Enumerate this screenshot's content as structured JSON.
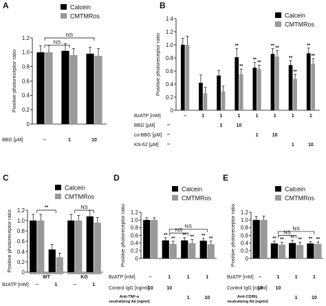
{
  "colors": {
    "calcein": "#000000",
    "cmtmros": "#999999"
  },
  "legend": {
    "calcein": "Calcein",
    "cmtmros": "CMTMRos"
  },
  "chart_data": [
    {
      "panel": "A",
      "type": "bar",
      "ylabel": "Positive photoreceptor ratio",
      "ylim": [
        0,
        1.2
      ],
      "yticks": [
        0,
        0.2,
        0.4,
        0.6,
        0.8,
        1.0,
        1.2
      ],
      "categories": [
        "1",
        "2",
        "3"
      ],
      "series": [
        {
          "name": "Calcein",
          "values": [
            1.0,
            1.02,
            0.98
          ],
          "errors": [
            0.09,
            0.1,
            0.09
          ]
        },
        {
          "name": "CMTMRos",
          "values": [
            1.0,
            0.96,
            0.95
          ],
          "errors": [
            0.1,
            0.09,
            0.1
          ]
        }
      ],
      "conditions": [
        {
          "label": "BBG [μM]",
          "values": [
            "–",
            "1",
            "10"
          ]
        }
      ],
      "brackets": [
        {
          "from": 0,
          "to": 1,
          "y": 1.1,
          "label": "NS"
        },
        {
          "from": 0,
          "to": 2,
          "y": 1.2,
          "label": "NS"
        }
      ]
    },
    {
      "panel": "B",
      "type": "bar",
      "ylabel": "Positive photoreceptor ratio",
      "ylim": [
        0,
        1.4
      ],
      "yticks": [
        0,
        0.2,
        0.4,
        0.6,
        0.8,
        1.0,
        1.2,
        1.4
      ],
      "categories": [
        "1",
        "2",
        "3",
        "4",
        "5",
        "6",
        "7",
        "8"
      ],
      "series": [
        {
          "name": "Calcein",
          "values": [
            1.0,
            0.42,
            0.53,
            0.81,
            0.65,
            0.86,
            0.69,
            0.87
          ],
          "errors": [
            0.1,
            0.12,
            0.08,
            0.13,
            0.08,
            0.08,
            0.07,
            0.08
          ],
          "marks": [
            "",
            "",
            "",
            "**",
            "**",
            "**",
            "**",
            "**"
          ]
        },
        {
          "name": "CMTMRos",
          "values": [
            1.0,
            0.26,
            0.29,
            0.55,
            0.63,
            0.82,
            0.48,
            0.71
          ],
          "errors": [
            0.13,
            0.09,
            0.08,
            0.08,
            0.06,
            0.09,
            0.07,
            0.08
          ],
          "marks": [
            "",
            "",
            "",
            "**",
            "**",
            "**",
            "**",
            "**"
          ]
        }
      ],
      "conditions": [
        {
          "label": "BzATP [mM]",
          "values": [
            "–",
            "1",
            "1",
            "1",
            "1",
            "1",
            "1",
            "1"
          ]
        },
        {
          "label": "BBG [μM]",
          "values": [
            "",
            "",
            "1",
            "10",
            "",
            "",
            "",
            ""
          ]
        },
        {
          "label": "co-BBG [μM]",
          "values": [
            "",
            "",
            "",
            "",
            "1",
            "10",
            "",
            ""
          ]
        },
        {
          "label": "KN-62 [μM]",
          "values": [
            "",
            "",
            "",
            "",
            "",
            "",
            "1",
            "10"
          ]
        }
      ],
      "brackets": []
    },
    {
      "panel": "C",
      "type": "bar",
      "ylabel": "Positive photoreceptor ratio",
      "ylim": [
        0,
        1.2
      ],
      "yticks": [
        0,
        0.2,
        0.4,
        0.6,
        0.8,
        1.0,
        1.2
      ],
      "categories": [
        "1",
        "2",
        "3",
        "4"
      ],
      "series": [
        {
          "name": "Calcein",
          "values": [
            1.0,
            0.44,
            1.0,
            1.08
          ],
          "errors": [
            0.12,
            0.1,
            0.12,
            0.12
          ]
        },
        {
          "name": "CMTMRos",
          "values": [
            1.0,
            0.29,
            1.0,
            0.96
          ],
          "errors": [
            0.12,
            0.08,
            0.1,
            0.1
          ]
        }
      ],
      "conditions": [
        {
          "label": "BzATP [mM]",
          "values": [
            "–",
            "1",
            "–",
            "1"
          ]
        }
      ],
      "groups": [
        {
          "label": "WT",
          "from": 0,
          "to": 1
        },
        {
          "label": "KO",
          "from": 2,
          "to": 3
        }
      ],
      "brackets": [
        {
          "from": 0,
          "to": 1,
          "y": 1.2,
          "label": "**"
        },
        {
          "from": 2,
          "to": 3,
          "y": 1.2,
          "label": "NS"
        }
      ]
    },
    {
      "panel": "D",
      "type": "bar",
      "ylabel": "Positive photoreceptor ratio",
      "ylim": [
        0,
        1.2
      ],
      "yticks": [
        0,
        0.2,
        0.4,
        0.6,
        0.8,
        1.0,
        1.2
      ],
      "categories": [
        "1",
        "2",
        "3",
        "4"
      ],
      "series": [
        {
          "name": "Calcein",
          "values": [
            1.0,
            0.47,
            0.47,
            0.46
          ],
          "errors": [
            0.06,
            0.07,
            0.07,
            0.06
          ],
          "marks": [
            "",
            "**",
            "**",
            "**"
          ]
        },
        {
          "name": "CMTMRos",
          "values": [
            1.0,
            0.38,
            0.4,
            0.37
          ],
          "errors": [
            0.06,
            0.07,
            0.09,
            0.08
          ],
          "marks": [
            "",
            "**",
            "**",
            "**"
          ]
        }
      ],
      "conditions": [
        {
          "label": "BzATP [mM]",
          "values": [
            "–",
            "1",
            "1",
            "1"
          ]
        },
        {
          "label": "Control IgG [ng/ml]",
          "values": [
            "10",
            "10",
            "",
            ""
          ]
        },
        {
          "label": "Anti-TNF-α neutralizing Ab [ng/ml]",
          "values": [
            "",
            "",
            "1",
            "10"
          ]
        }
      ],
      "brackets": [
        {
          "from": 1,
          "to": 2,
          "y": 0.66,
          "label": "NS"
        },
        {
          "from": 1,
          "to": 3,
          "y": 0.76,
          "label": "NS"
        }
      ]
    },
    {
      "panel": "E",
      "type": "bar",
      "ylabel": "Positive photoreceptor ratio",
      "ylim": [
        0,
        1.2
      ],
      "yticks": [
        0,
        0.2,
        0.4,
        0.6,
        0.8,
        1.0,
        1.2
      ],
      "categories": [
        "1",
        "2",
        "3",
        "4"
      ],
      "series": [
        {
          "name": "Calcein",
          "values": [
            1.0,
            0.39,
            0.4,
            0.39
          ],
          "errors": [
            0.09,
            0.06,
            0.07,
            0.05
          ],
          "marks": [
            "",
            "**",
            "**",
            "**"
          ]
        },
        {
          "name": "CMTMRos",
          "values": [
            1.0,
            0.36,
            0.35,
            0.38
          ],
          "errors": [
            0.1,
            0.06,
            0.07,
            0.05
          ],
          "marks": [
            "",
            "**",
            "**",
            "**"
          ]
        }
      ],
      "conditions": [
        {
          "label": "BzATP [mM]",
          "values": [
            "–",
            "1",
            "1",
            "1"
          ]
        },
        {
          "label": "Control IgG [ng/ml]",
          "values": [
            "10",
            "10",
            "",
            ""
          ]
        },
        {
          "label": "Anti-CD95L neutralizing Ab [ng/ml]",
          "values": [
            "",
            "",
            "1",
            "10"
          ]
        }
      ],
      "brackets": [
        {
          "from": 1,
          "to": 2,
          "y": 0.6,
          "label": "NS"
        },
        {
          "from": 1,
          "to": 3,
          "y": 0.7,
          "label": "NS"
        }
      ]
    }
  ]
}
